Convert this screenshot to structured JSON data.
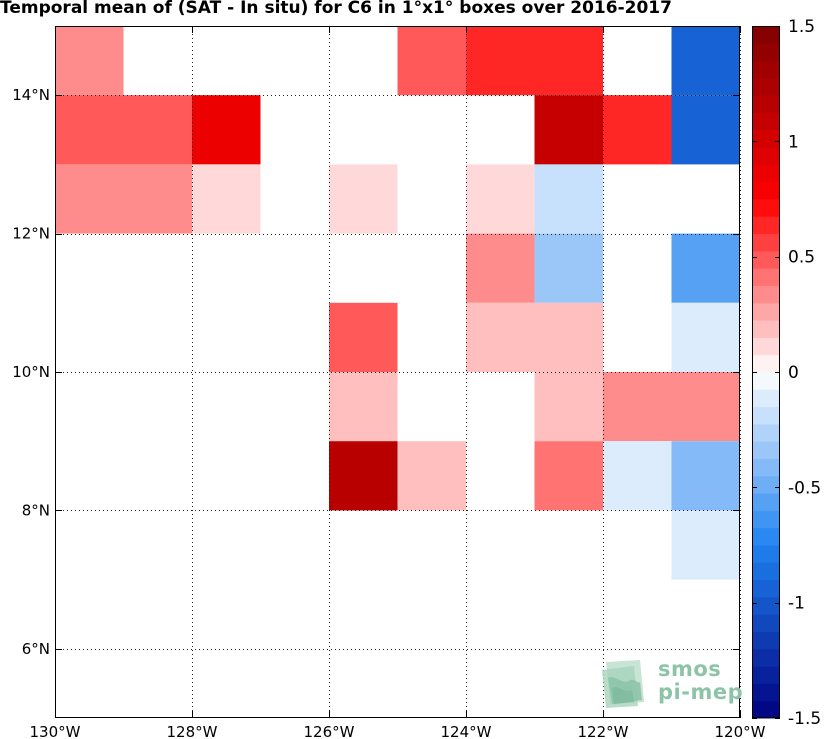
{
  "chart_data": {
    "type": "heatmap",
    "title": "Temporal mean of (SAT - In situ) for C6 in 1°x1° boxes over 2016-2017",
    "xlabel": "",
    "ylabel": "",
    "xlim": [
      -130,
      -120
    ],
    "ylim": [
      5,
      15
    ],
    "x_ticks": [
      -130,
      -128,
      -126,
      -124,
      -122,
      -120
    ],
    "x_tick_labels": [
      "130°W",
      "128°W",
      "126°W",
      "124°W",
      "122°W",
      "120°W"
    ],
    "y_ticks": [
      6,
      8,
      10,
      12,
      14
    ],
    "y_tick_labels": [
      "6°N",
      "8°N",
      "10°N",
      "12°N",
      "14°N"
    ],
    "grid": true,
    "cell_size_deg": 1,
    "colorbar": {
      "vmin": -1.5,
      "vmax": 1.5,
      "ticks": [
        1.5,
        1,
        0.5,
        0,
        -0.5,
        -1,
        -1.5
      ],
      "tick_labels": [
        "1.5",
        "1",
        "0.5",
        "0",
        "-0.5",
        "-1",
        "-1.5"
      ],
      "levels": 40,
      "colors": {
        "low": "#000080",
        "mid_low": "#1e82f0",
        "zero": "#ffffff",
        "mid_high": "#ff0000",
        "high": "#800000"
      }
    },
    "cells": [
      {
        "lon": -130,
        "lat": 14,
        "value": 0.35
      },
      {
        "lon": -125,
        "lat": 14,
        "value": 0.5
      },
      {
        "lon": -124,
        "lat": 14,
        "value": 0.6
      },
      {
        "lon": -123,
        "lat": 14,
        "value": 0.6
      },
      {
        "lon": -121,
        "lat": 14,
        "value": -0.9
      },
      {
        "lon": -130,
        "lat": 13,
        "value": 0.45
      },
      {
        "lon": -129,
        "lat": 13,
        "value": 0.45
      },
      {
        "lon": -128,
        "lat": 13,
        "value": 0.85
      },
      {
        "lon": -123,
        "lat": 13,
        "value": 1.05
      },
      {
        "lon": -122,
        "lat": 13,
        "value": 0.6
      },
      {
        "lon": -121,
        "lat": 13,
        "value": -0.9
      },
      {
        "lon": -130,
        "lat": 12,
        "value": 0.35
      },
      {
        "lon": -129,
        "lat": 12,
        "value": 0.35
      },
      {
        "lon": -128,
        "lat": 12,
        "value": 0.1
      },
      {
        "lon": -126,
        "lat": 12,
        "value": 0.1
      },
      {
        "lon": -124,
        "lat": 12,
        "value": 0.1
      },
      {
        "lon": -123,
        "lat": 12,
        "value": -0.2
      },
      {
        "lon": -124,
        "lat": 11,
        "value": 0.35
      },
      {
        "lon": -123,
        "lat": 11,
        "value": -0.35
      },
      {
        "lon": -121,
        "lat": 11,
        "value": -0.6
      },
      {
        "lon": -126,
        "lat": 10,
        "value": 0.45
      },
      {
        "lon": -124,
        "lat": 10,
        "value": 0.2
      },
      {
        "lon": -123,
        "lat": 10,
        "value": 0.2
      },
      {
        "lon": -121,
        "lat": 10,
        "value": -0.1
      },
      {
        "lon": -126,
        "lat": 9,
        "value": 0.2
      },
      {
        "lon": -123,
        "lat": 9,
        "value": 0.2
      },
      {
        "lon": -122,
        "lat": 9,
        "value": 0.35
      },
      {
        "lon": -121,
        "lat": 9,
        "value": 0.35
      },
      {
        "lon": -126,
        "lat": 8,
        "value": 1.15
      },
      {
        "lon": -125,
        "lat": 8,
        "value": 0.2
      },
      {
        "lon": -123,
        "lat": 8,
        "value": 0.4
      },
      {
        "lon": -122,
        "lat": 8,
        "value": -0.1
      },
      {
        "lon": -121,
        "lat": 8,
        "value": -0.4
      },
      {
        "lon": -121,
        "lat": 7,
        "value": -0.1
      }
    ]
  },
  "logo": {
    "line1": "smos",
    "line2": "pi-mep"
  },
  "colors": {
    "grid": "#222222",
    "frame": "#000000",
    "logo": "#8dc4a8"
  }
}
